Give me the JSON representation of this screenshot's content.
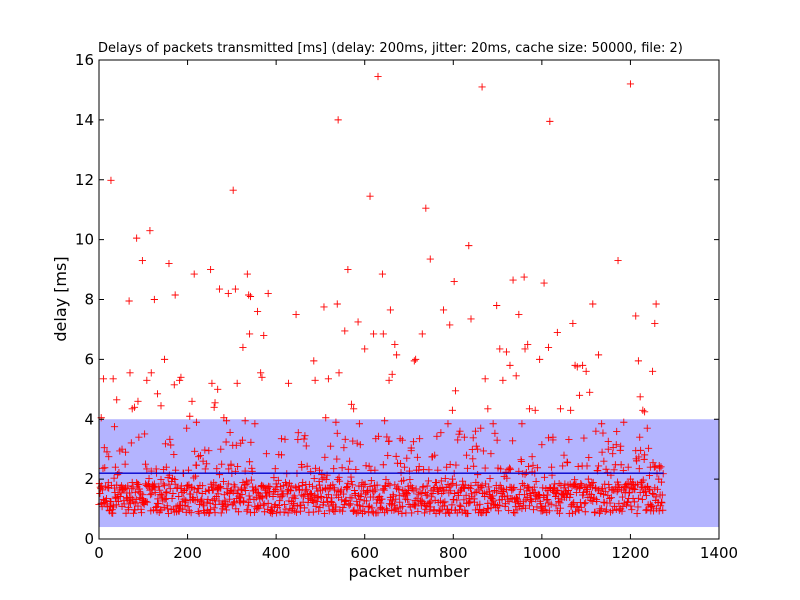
{
  "chart_data": {
    "type": "scatter",
    "title": "Delays of packets transmitted [ms] (delay: 200ms, jitter: 20ms, cache size: 50000, file: 2)",
    "xlabel": "packet number",
    "ylabel": "delay [ms]",
    "xlim": [
      0,
      1400
    ],
    "ylim": [
      0,
      16
    ],
    "xticks": [
      0,
      200,
      400,
      600,
      800,
      1000,
      1200,
      1400
    ],
    "yticks": [
      0,
      2,
      4,
      6,
      8,
      10,
      12,
      14,
      16
    ],
    "grid": false,
    "legend": "none",
    "band": {
      "y_from": 0.4,
      "y_to": 4.0,
      "color": "#b4b4ff"
    },
    "mean_line": {
      "x_from": 0,
      "x_to": 1275,
      "y": 2.2,
      "color": "#0000cc"
    },
    "series": [
      {
        "marker": "plus",
        "color": "#ff0000",
        "points": [
          [
            5,
            4.05
          ],
          [
            10,
            5.35
          ],
          [
            12,
            3.05
          ],
          [
            22,
            2.75
          ],
          [
            27,
            11.98
          ],
          [
            32,
            5.35
          ],
          [
            35,
            3.75
          ],
          [
            37,
            2.4
          ],
          [
            40,
            4.65
          ],
          [
            52,
            3.0
          ],
          [
            60,
            2.9
          ],
          [
            68,
            7.95
          ],
          [
            70,
            5.55
          ],
          [
            75,
            4.35
          ],
          [
            80,
            4.4
          ],
          [
            85,
            10.05
          ],
          [
            88,
            4.6
          ],
          [
            90,
            3.4
          ],
          [
            98,
            9.3
          ],
          [
            105,
            2.5
          ],
          [
            108,
            5.3
          ],
          [
            115,
            10.3
          ],
          [
            118,
            5.55
          ],
          [
            125,
            8.0
          ],
          [
            130,
            2.2
          ],
          [
            132,
            4.85
          ],
          [
            140,
            4.45
          ],
          [
            148,
            6.0
          ],
          [
            152,
            2.4
          ],
          [
            158,
            9.2
          ],
          [
            170,
            5.15
          ],
          [
            172,
            8.15
          ],
          [
            182,
            5.3
          ],
          [
            185,
            5.4
          ],
          [
            190,
            2.2
          ],
          [
            198,
            3.7
          ],
          [
            205,
            4.1
          ],
          [
            210,
            4.6
          ],
          [
            215,
            8.85
          ],
          [
            220,
            3.9
          ],
          [
            225,
            2.75
          ],
          [
            235,
            2.6
          ],
          [
            248,
            2.95
          ],
          [
            252,
            9.0
          ],
          [
            255,
            5.2
          ],
          [
            260,
            4.4
          ],
          [
            262,
            4.55
          ],
          [
            268,
            5.0
          ],
          [
            272,
            8.35
          ],
          [
            275,
            3.0
          ],
          [
            282,
            4.05
          ],
          [
            288,
            3.95
          ],
          [
            292,
            8.2
          ],
          [
            298,
            2.5
          ],
          [
            303,
            11.65
          ],
          [
            308,
            8.35
          ],
          [
            312,
            5.2
          ],
          [
            320,
            3.2
          ],
          [
            325,
            6.4
          ],
          [
            330,
            3.95
          ],
          [
            335,
            8.85
          ],
          [
            338,
            8.15
          ],
          [
            340,
            6.85
          ],
          [
            342,
            8.1
          ],
          [
            352,
            3.85
          ],
          [
            358,
            7.6
          ],
          [
            365,
            5.55
          ],
          [
            368,
            5.4
          ],
          [
            372,
            6.8
          ],
          [
            378,
            2.85
          ],
          [
            382,
            8.2
          ],
          [
            398,
            2.35
          ],
          [
            412,
            3.35
          ],
          [
            428,
            5.2
          ],
          [
            445,
            7.5
          ],
          [
            458,
            2.4
          ],
          [
            465,
            3.45
          ],
          [
            478,
            2.25
          ],
          [
            485,
            5.95
          ],
          [
            488,
            5.3
          ],
          [
            498,
            2.3
          ],
          [
            508,
            7.75
          ],
          [
            512,
            4.05
          ],
          [
            518,
            5.35
          ],
          [
            523,
            3.1
          ],
          [
            530,
            2.35
          ],
          [
            535,
            3.9
          ],
          [
            538,
            7.85
          ],
          [
            540,
            14.0
          ],
          [
            542,
            5.55
          ],
          [
            555,
            6.95
          ],
          [
            562,
            9.0
          ],
          [
            570,
            4.5
          ],
          [
            575,
            4.35
          ],
          [
            585,
            7.25
          ],
          [
            588,
            3.85
          ],
          [
            590,
            3.15
          ],
          [
            600,
            6.35
          ],
          [
            612,
            11.45
          ],
          [
            620,
            6.85
          ],
          [
            625,
            3.35
          ],
          [
            630,
            15.45
          ],
          [
            640,
            8.85
          ],
          [
            642,
            6.85
          ],
          [
            645,
            3.95
          ],
          [
            655,
            5.3
          ],
          [
            658,
            7.65
          ],
          [
            662,
            5.5
          ],
          [
            668,
            6.5
          ],
          [
            672,
            6.15
          ],
          [
            680,
            3.35
          ],
          [
            685,
            3.3
          ],
          [
            695,
            2.7
          ],
          [
            705,
            2.95
          ],
          [
            712,
            5.95
          ],
          [
            715,
            6.0
          ],
          [
            722,
            2.3
          ],
          [
            730,
            6.85
          ],
          [
            738,
            11.05
          ],
          [
            748,
            9.35
          ],
          [
            758,
            2.8
          ],
          [
            765,
            2.3
          ],
          [
            772,
            3.55
          ],
          [
            778,
            7.65
          ],
          [
            788,
            3.85
          ],
          [
            792,
            7.15
          ],
          [
            798,
            4.3
          ],
          [
            802,
            8.6
          ],
          [
            805,
            4.95
          ],
          [
            815,
            3.6
          ],
          [
            825,
            3.4
          ],
          [
            830,
            2.8
          ],
          [
            835,
            9.8
          ],
          [
            840,
            7.35
          ],
          [
            850,
            3.6
          ],
          [
            855,
            2.15
          ],
          [
            862,
            3.7
          ],
          [
            865,
            15.1
          ],
          [
            872,
            5.35
          ],
          [
            878,
            4.35
          ],
          [
            885,
            2.85
          ],
          [
            890,
            3.85
          ],
          [
            898,
            7.8
          ],
          [
            905,
            6.35
          ],
          [
            912,
            5.3
          ],
          [
            920,
            6.25
          ],
          [
            928,
            5.8
          ],
          [
            935,
            8.65
          ],
          [
            942,
            5.45
          ],
          [
            948,
            7.5
          ],
          [
            955,
            3.85
          ],
          [
            960,
            8.75
          ],
          [
            962,
            6.35
          ],
          [
            968,
            6.5
          ],
          [
            972,
            4.35
          ],
          [
            978,
            2.75
          ],
          [
            985,
            4.3
          ],
          [
            995,
            6.0
          ],
          [
            1000,
            3.15
          ],
          [
            1005,
            8.55
          ],
          [
            1015,
            6.4
          ],
          [
            1018,
            13.95
          ],
          [
            1025,
            3.4
          ],
          [
            1035,
            6.9
          ],
          [
            1042,
            4.35
          ],
          [
            1050,
            2.8
          ],
          [
            1058,
            2.55
          ],
          [
            1065,
            4.3
          ],
          [
            1070,
            7.2
          ],
          [
            1075,
            5.8
          ],
          [
            1080,
            5.75
          ],
          [
            1085,
            4.8
          ],
          [
            1092,
            5.8
          ],
          [
            1100,
            5.6
          ],
          [
            1108,
            4.9
          ],
          [
            1115,
            7.85
          ],
          [
            1122,
            3.6
          ],
          [
            1128,
            6.15
          ],
          [
            1135,
            3.85
          ],
          [
            1140,
            2.6
          ],
          [
            1150,
            3.0
          ],
          [
            1160,
            2.85
          ],
          [
            1168,
            3.15
          ],
          [
            1172,
            9.3
          ],
          [
            1178,
            3.1
          ],
          [
            1185,
            3.9
          ],
          [
            1195,
            2.4
          ],
          [
            1200,
            15.2
          ],
          [
            1212,
            7.45
          ],
          [
            1218,
            5.95
          ],
          [
            1222,
            4.75
          ],
          [
            1228,
            4.3
          ],
          [
            1232,
            4.25
          ],
          [
            1238,
            3.7
          ],
          [
            1245,
            2.4
          ],
          [
            1250,
            5.6
          ],
          [
            1255,
            7.2
          ],
          [
            1258,
            7.85
          ],
          [
            1265,
            2.45
          ],
          [
            1270,
            1.9
          ]
        ]
      }
    ]
  }
}
